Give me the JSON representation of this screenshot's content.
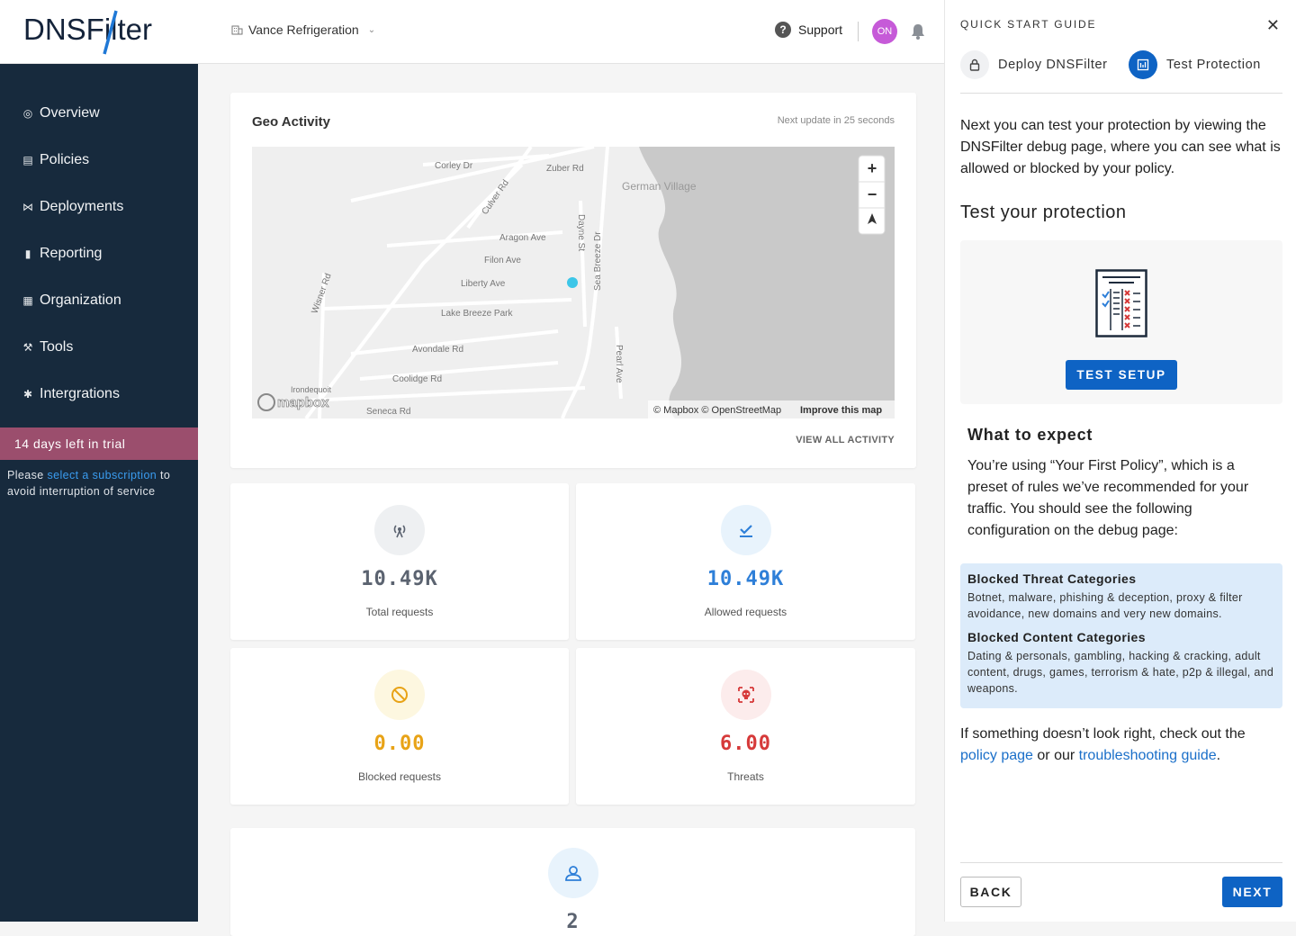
{
  "header": {
    "logo_text": "DNSFilter",
    "org_name": "Vance Refrigeration",
    "support_label": "Support",
    "avatar_initials": "ON"
  },
  "sidebar": {
    "items": [
      {
        "label": "Overview",
        "icon": "globe-icon"
      },
      {
        "label": "Policies",
        "icon": "policies-icon"
      },
      {
        "label": "Deployments",
        "icon": "deployments-icon"
      },
      {
        "label": "Reporting",
        "icon": "reporting-icon"
      },
      {
        "label": "Organization",
        "icon": "organization-icon"
      },
      {
        "label": "Tools",
        "icon": "wrench-icon"
      },
      {
        "label": "Intergrations",
        "icon": "integrations-icon"
      }
    ],
    "trial_banner": "14 days left in trial",
    "trial_note_pre": "Please ",
    "trial_note_link": "select a subscription",
    "trial_note_post": " to avoid interruption of service"
  },
  "geo": {
    "title": "Geo Activity",
    "next_update": "Next update in 25 seconds",
    "view_all": "VIEW ALL ACTIVITY",
    "map_labels": {
      "corley": "Corley Dr",
      "zuber": "Zuber Rd",
      "culver": "Culver Rd",
      "german_village": "German Village",
      "aragon": "Aragon Ave",
      "filon": "Filon Ave",
      "liberty": "Liberty Ave",
      "lake_breeze": "Lake Breeze Park",
      "wisner": "Wisner Rd",
      "dayne": "Dayne St",
      "sea_breeze": "Sea Breeze Dr",
      "avondale": "Avondale Rd",
      "coolidge": "Coolidge Rd",
      "irondequoit": "Irondequoit",
      "seneca": "Seneca Rd",
      "pearl": "Pearl Ave",
      "mapbox": "mapbox"
    },
    "attribution": "© Mapbox © OpenStreetMap",
    "improve": "Improve this map"
  },
  "stats": [
    {
      "value": "10.49K",
      "label": "Total requests",
      "color": "#5b6370",
      "bg": "#eef0f2"
    },
    {
      "value": "10.49K",
      "label": "Allowed requests",
      "color": "#2e7fd8",
      "bg": "#e8f3fc"
    },
    {
      "value": "0.00",
      "label": "Blocked requests",
      "color": "#e8a317",
      "bg": "#fdf7e0"
    },
    {
      "value": "6.00",
      "label": "Threats",
      "color": "#d63a3a",
      "bg": "#fcecec"
    },
    {
      "value": "2",
      "label": "",
      "color": "#5b6370",
      "bg": "#e8f3fc"
    }
  ],
  "guide": {
    "title": "QUICK START GUIDE",
    "step1": "Deploy DNSFilter",
    "step2": "Test Protection",
    "intro": "Next you can test your protection by viewing the DNSFilter debug page, where you can see what is allowed or blocked by your policy.",
    "test_heading": "Test your protection",
    "test_button": "TEST SETUP",
    "expect_heading": "What to expect",
    "expect_text": "You’re using “Your First Policy”, which is a preset of rules we’ve recommended for your traffic. You should see the following configuration on the debug page:",
    "threat_heading": "Blocked Threat Categories",
    "threat_text": "Botnet, malware, phishing & deception, proxy & filter avoidance, new domains and very new domains.",
    "content_heading": "Blocked Content Categories",
    "content_text": "Dating & personals, gambling, hacking & cracking, adult content, drugs, games, terrorism & hate, p2p & illegal, and weapons.",
    "footer_pre": "If something doesn’t look right, check out the ",
    "footer_link1": "policy page",
    "footer_mid": " or our ",
    "footer_link2": "troubleshooting guide",
    "footer_post": ".",
    "back": "BACK",
    "next": "NEXT"
  }
}
